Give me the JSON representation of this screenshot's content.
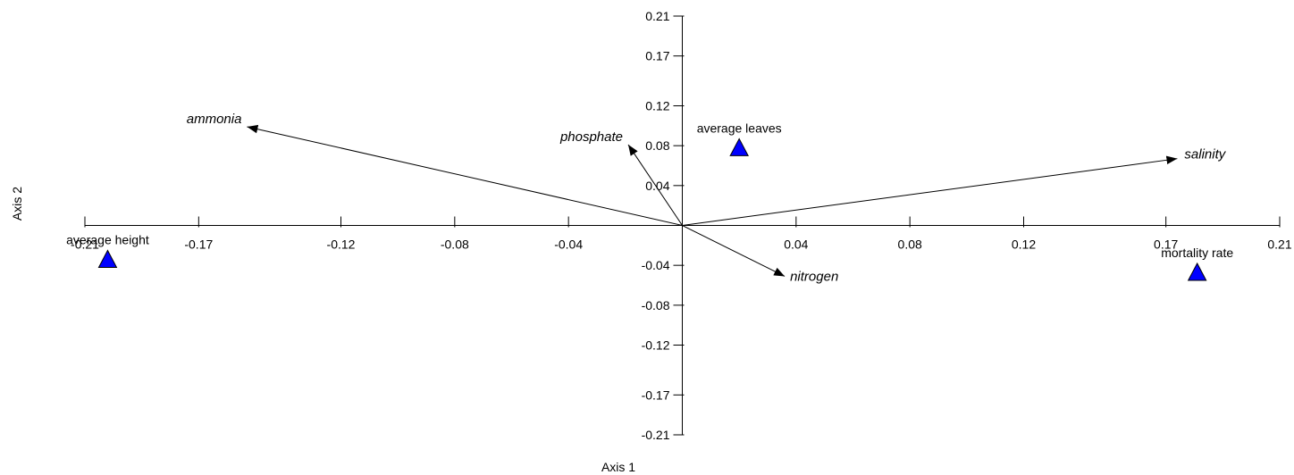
{
  "chart_data": {
    "type": "scatter",
    "xlabel": "Axis 1",
    "ylabel": "Axis 2",
    "xlim": [
      -0.21,
      0.21
    ],
    "ylim": [
      -0.21,
      0.21
    ],
    "x_ticks": [
      {
        "value": -0.21,
        "label": "-0.21"
      },
      {
        "value": -0.17,
        "label": "-0.17"
      },
      {
        "value": -0.12,
        "label": "-0.12"
      },
      {
        "value": -0.08,
        "label": "-0.08"
      },
      {
        "value": -0.04,
        "label": "-0.04"
      },
      {
        "value": 0.04,
        "label": "0.04"
      },
      {
        "value": 0.08,
        "label": "0.08"
      },
      {
        "value": 0.12,
        "label": "0.12"
      },
      {
        "value": 0.17,
        "label": "0.17"
      },
      {
        "value": 0.21,
        "label": "0.21"
      }
    ],
    "y_ticks": [
      {
        "value": 0.21,
        "label": "0.21"
      },
      {
        "value": 0.17,
        "label": "0.17"
      },
      {
        "value": 0.12,
        "label": "0.12"
      },
      {
        "value": 0.08,
        "label": "0.08"
      },
      {
        "value": 0.04,
        "label": "0.04"
      },
      {
        "value": -0.04,
        "label": "-0.04"
      },
      {
        "value": -0.08,
        "label": "-0.08"
      },
      {
        "value": -0.12,
        "label": "-0.12"
      },
      {
        "value": -0.17,
        "label": "-0.17"
      },
      {
        "value": -0.21,
        "label": "-0.21"
      }
    ],
    "vectors": [
      {
        "name": "ammonia",
        "x": -0.153,
        "y": 0.099
      },
      {
        "name": "phosphate",
        "x": -0.019,
        "y": 0.081
      },
      {
        "name": "salinity",
        "x": 0.174,
        "y": 0.067
      },
      {
        "name": "nitrogen",
        "x": 0.036,
        "y": -0.051
      }
    ],
    "points": [
      {
        "name": "average height",
        "x": -0.202,
        "y": -0.034
      },
      {
        "name": "average leaves",
        "x": 0.02,
        "y": 0.078
      },
      {
        "name": "mortality rate",
        "x": 0.181,
        "y": -0.047
      }
    ],
    "marker_color": "#0000ff",
    "grid": false,
    "legend": "none"
  }
}
